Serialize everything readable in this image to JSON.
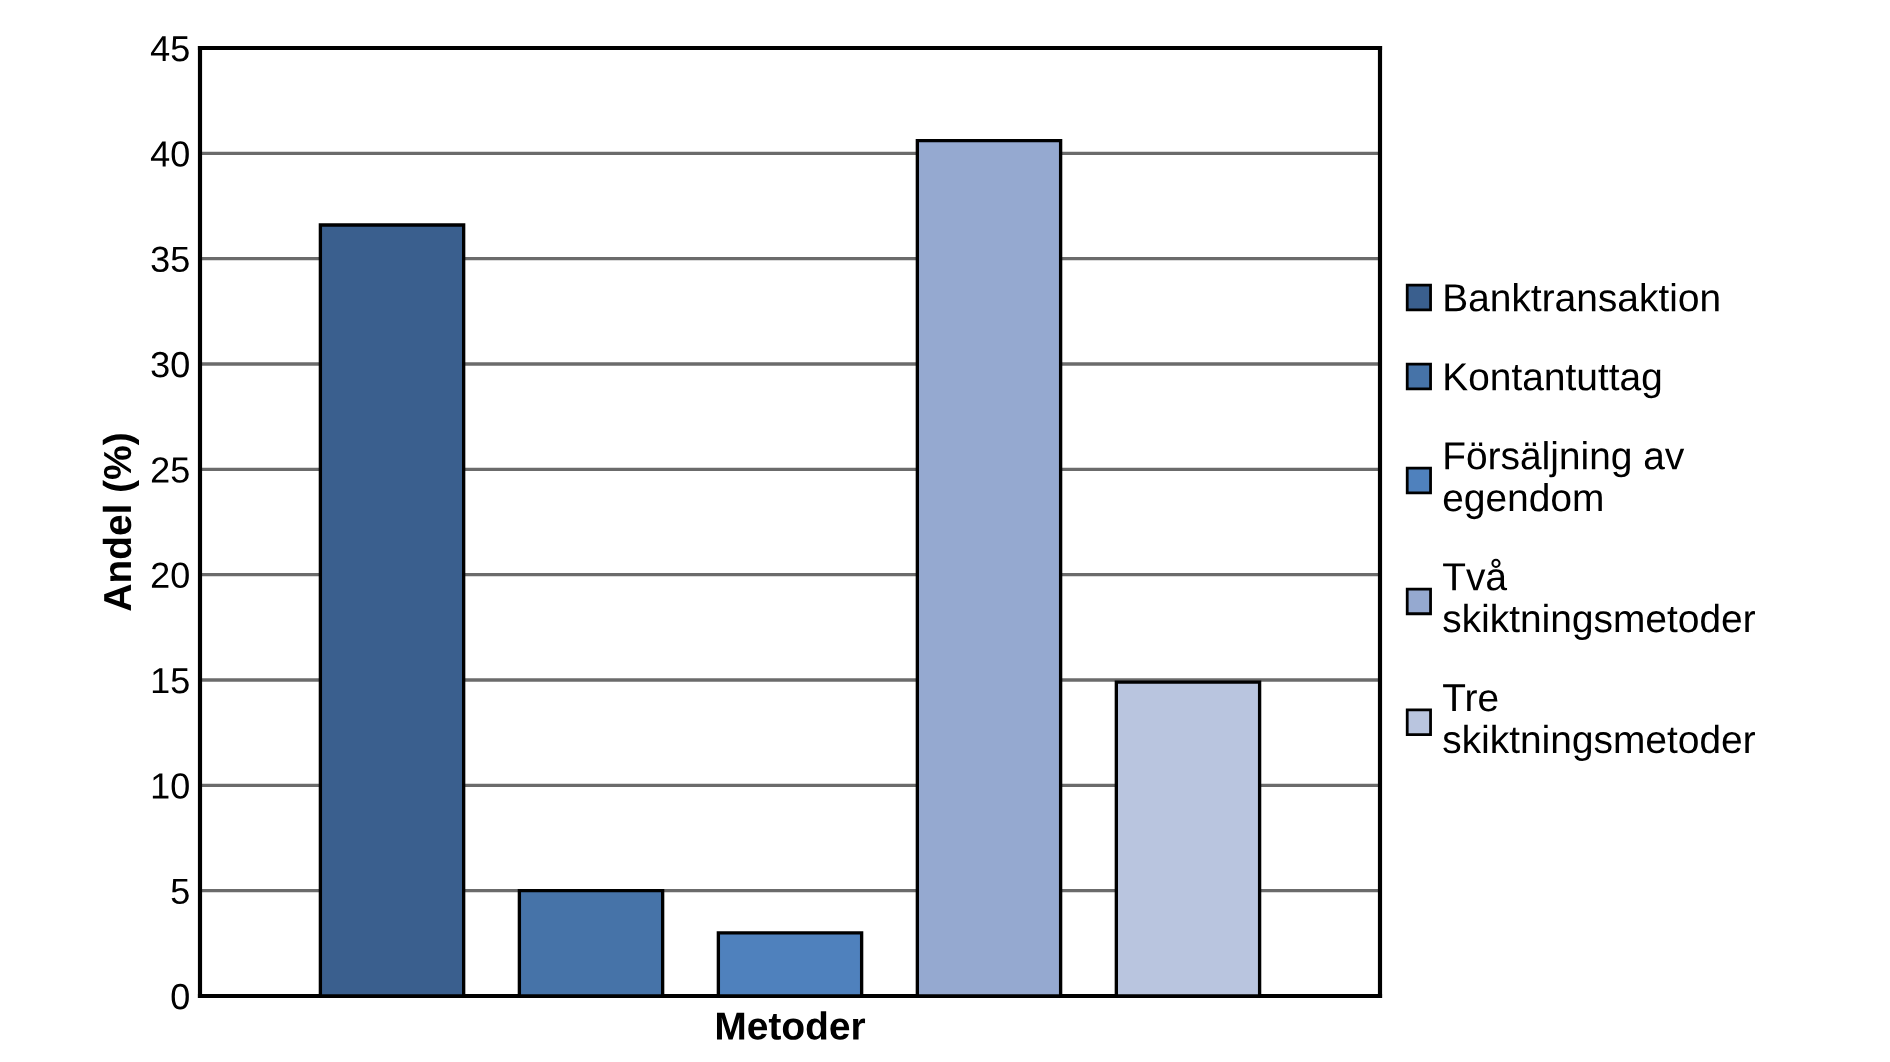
{
  "chart_data": {
    "type": "bar",
    "xlabel": "Metoder",
    "ylabel": "Andel (%)",
    "categories": [
      null
    ],
    "series": [
      {
        "name": "Banktransaktion",
        "color": "#3a5f8e",
        "values": [
          36.6
        ]
      },
      {
        "name": "Kontantuttag",
        "color": "#4673a8",
        "values": [
          5.0
        ]
      },
      {
        "name": "Försäljning av egendom",
        "color": "#4f81bd",
        "values": [
          3.0
        ]
      },
      {
        "name": "Två skiktningsmetoder",
        "color": "#95a9d0",
        "values": [
          40.6
        ]
      },
      {
        "name": "Tre skiktningsmetoder",
        "color": "#b9c5df",
        "values": [
          14.9
        ]
      }
    ],
    "ylim": [
      0,
      45
    ],
    "yticks": [
      0,
      5,
      10,
      15,
      20,
      25,
      30,
      35,
      40,
      45
    ],
    "grid": "y",
    "legend": "right"
  }
}
